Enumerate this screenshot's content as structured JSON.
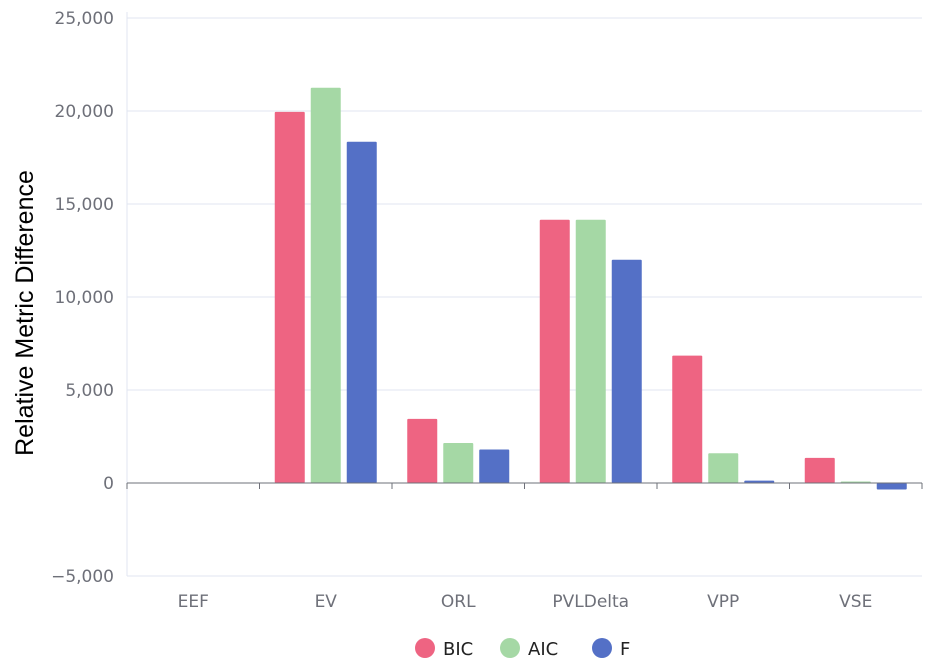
{
  "chart_data": {
    "type": "bar",
    "ylabel": "Relative Metric Difference",
    "categories": [
      "EEF",
      "EV",
      "ORL",
      "PVLDelta",
      "VPP",
      "VSE"
    ],
    "series": [
      {
        "name": "BIC",
        "color": "#ee6482",
        "values": [
          0,
          19950,
          3450,
          14150,
          6850,
          1350
        ]
      },
      {
        "name": "AIC",
        "color": "#a5d8a5",
        "values": [
          0,
          21250,
          2150,
          14150,
          1600,
          80
        ]
      },
      {
        "name": "F",
        "color": "#5470c6",
        "values": [
          0,
          18350,
          1800,
          12000,
          130,
          -350
        ]
      }
    ],
    "ylim": [
      -5000,
      25000
    ],
    "yticks": [
      -5000,
      0,
      5000,
      10000,
      15000,
      20000,
      25000
    ],
    "ytick_labels": [
      "−5,000",
      "0",
      "5,000",
      "10,000",
      "15,000",
      "20,000",
      "25,000"
    ],
    "grid": true,
    "legend_position": "bottom-center"
  }
}
